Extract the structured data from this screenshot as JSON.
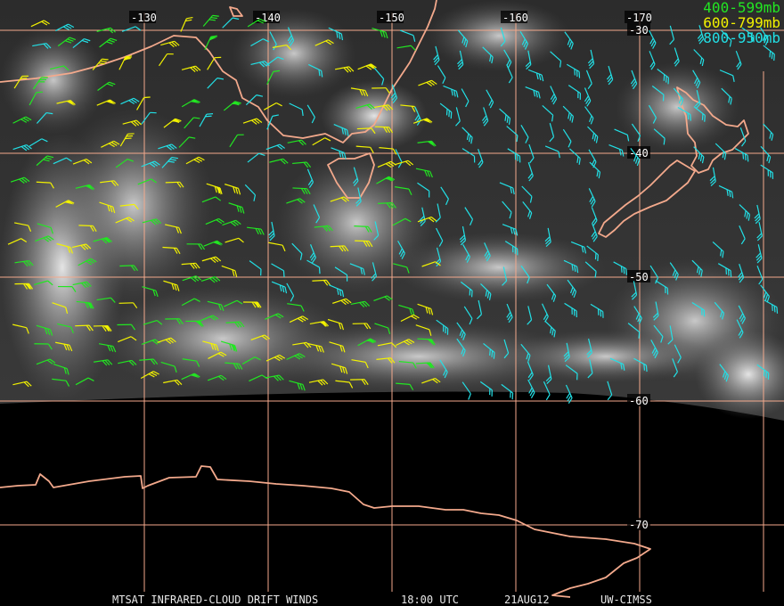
{
  "legend": [
    {
      "label": "400-599mb",
      "color": "#22e622"
    },
    {
      "label": "600-799mb",
      "color": "#f2f200"
    },
    {
      "label": "800-950mb",
      "color": "#22e0e6"
    }
  ],
  "grid": {
    "longitude_labels": [
      "-130",
      "-140",
      "-150",
      "-160",
      "-170"
    ],
    "latitude_labels": [
      "-30",
      "-40",
      "-50",
      "-60",
      "-70"
    ],
    "line_color": "#f3a98c"
  },
  "caption": {
    "product": "MTSAT INFRARED-CLOUD DRIFT WINDS",
    "time": "18:00 UTC",
    "date": "21AUG12",
    "source": "UW-CIMSS"
  },
  "colors": {
    "coast": "#f3a98c",
    "background": "#000000",
    "cloud": "#bfbfbf"
  }
}
